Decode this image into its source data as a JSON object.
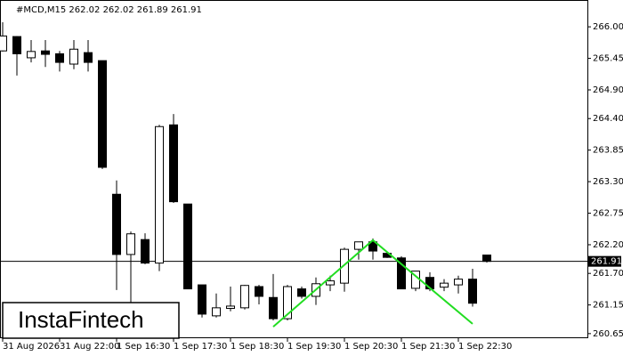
{
  "chart_data": {
    "type": "candlestick",
    "title": "#MCD,M15  262.02 262.02 261.89 261.91",
    "categories": [
      "31 Aug 2026",
      null,
      null,
      null,
      "31 Aug 22:00",
      null,
      null,
      null,
      "1 Sep 16:30",
      null,
      null,
      null,
      "1 Sep 17:30",
      null,
      null,
      null,
      "1 Sep 18:30",
      null,
      null,
      null,
      "1 Sep 19:30",
      null,
      null,
      null,
      "1 Sep 20:30",
      null,
      null,
      null,
      "1 Sep 21:30",
      null,
      null,
      null,
      "1 Sep 22:30",
      null,
      null
    ],
    "open": [
      265.58,
      265.83,
      265.46,
      265.58,
      265.53,
      265.35,
      265.55,
      265.41,
      263.08,
      262.03,
      262.29,
      261.88,
      264.29,
      262.91,
      261.5,
      260.96,
      261.09,
      261.1,
      261.47,
      261.28,
      260.91,
      261.43,
      261.3,
      261.5,
      261.53,
      262.12,
      262.25,
      262.05,
      261.97,
      261.44,
      261.63,
      261.46,
      261.5,
      261.6,
      262.02
    ],
    "high": [
      266.08,
      265.84,
      265.77,
      265.77,
      265.58,
      265.77,
      265.77,
      265.41,
      263.32,
      262.43,
      262.4,
      264.29,
      264.48,
      262.91,
      261.5,
      261.35,
      261.47,
      261.5,
      261.5,
      261.69,
      261.5,
      261.47,
      261.63,
      261.66,
      262.15,
      262.25,
      262.31,
      262.08,
      262.0,
      261.74,
      261.72,
      261.6,
      261.66,
      261.78,
      262.02
    ],
    "low": [
      265.57,
      265.15,
      265.38,
      265.3,
      265.22,
      265.26,
      265.22,
      263.52,
      261.41,
      261.19,
      261.86,
      261.74,
      262.93,
      261.43,
      260.93,
      260.93,
      261.04,
      261.07,
      261.16,
      260.88,
      260.88,
      261.26,
      261.15,
      261.39,
      261.38,
      261.94,
      261.94,
      261.97,
      261.43,
      261.39,
      261.39,
      261.39,
      261.35,
      261.12,
      261.89
    ],
    "close": [
      265.84,
      265.53,
      265.57,
      265.52,
      265.38,
      265.61,
      265.38,
      263.55,
      262.03,
      262.39,
      261.88,
      264.26,
      262.95,
      261.43,
      260.99,
      261.1,
      261.13,
      261.49,
      261.3,
      260.91,
      261.47,
      261.3,
      261.52,
      261.57,
      262.12,
      262.25,
      262.09,
      261.98,
      261.43,
      261.74,
      261.43,
      261.53,
      261.6,
      261.18,
      261.91
    ],
    "up_color": "#ffffff",
    "down_color": "#000000",
    "ylim": [
      260.57,
      266.39
    ],
    "yticks": [
      {
        "value": 266.0,
        "label": "266.00"
      },
      {
        "value": 265.45,
        "label": "265.45"
      },
      {
        "value": 264.9,
        "label": "264.90"
      },
      {
        "value": 264.4,
        "label": "264.40"
      },
      {
        "value": 263.85,
        "label": "263.85"
      },
      {
        "value": 263.3,
        "label": "263.30"
      },
      {
        "value": 262.75,
        "label": "262.75"
      },
      {
        "value": 262.2,
        "label": "262.20"
      },
      {
        "value": 261.7,
        "label": "261.70"
      },
      {
        "value": 261.15,
        "label": "261.15"
      },
      {
        "value": 260.65,
        "label": "260.65"
      }
    ],
    "current_price": 261.91,
    "pattern": {
      "color": "#22dd22",
      "x": [
        19,
        26,
        33
      ],
      "values": [
        260.77,
        262.28,
        260.82
      ]
    },
    "watermark": "InstaFintech"
  }
}
